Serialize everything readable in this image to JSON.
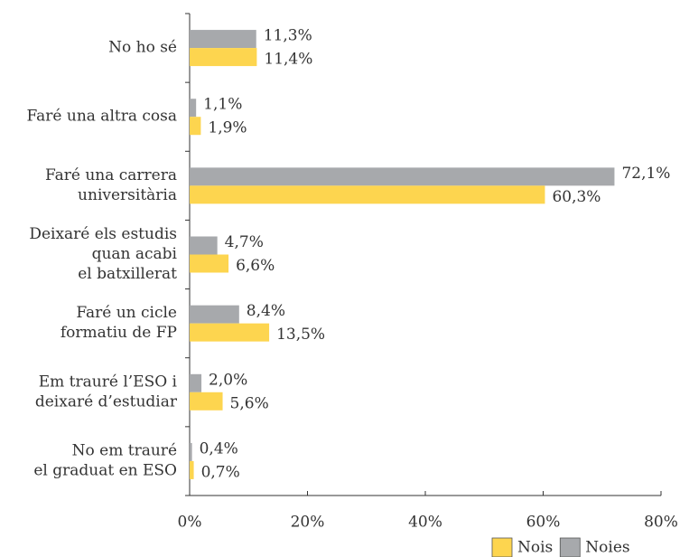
{
  "chart_data": {
    "type": "hbar",
    "categories": [
      [
        "No ho sé"
      ],
      [
        "Faré una altra cosa"
      ],
      [
        "Faré una carrera",
        "universitària"
      ],
      [
        "Deixaré els estudis",
        "quan acabi",
        "el batxillerat"
      ],
      [
        "Faré un cicle",
        "formatiu de FP"
      ],
      [
        "Em trauré l’ESO i",
        "deixaré d’estudiar"
      ],
      [
        "No em trauré",
        "el graduat en ESO"
      ]
    ],
    "series": [
      {
        "name": "Nois",
        "color": "#fdd54f",
        "values": [
          11.4,
          1.9,
          60.3,
          6.6,
          13.5,
          5.6,
          0.7
        ],
        "value_labels": [
          "11,4%",
          "1,9%",
          "60,3%",
          "6,6%",
          "13,5%",
          "5,6%",
          "0,7%"
        ]
      },
      {
        "name": "Noies",
        "color": "#a7a9ac",
        "values": [
          11.3,
          1.1,
          72.1,
          4.7,
          8.4,
          2.0,
          0.4
        ],
        "value_labels": [
          "11,3%",
          "1,1%",
          "72,1%",
          "4,7%",
          "8,4%",
          "2,0%",
          "0,4%"
        ]
      }
    ],
    "xlim": [
      0,
      80
    ],
    "xticks": [
      {
        "value": 0,
        "label": "0%"
      },
      {
        "value": 20,
        "label": "20%"
      },
      {
        "value": 40,
        "label": "40%"
      },
      {
        "value": 60,
        "label": "60%"
      },
      {
        "value": 80,
        "label": "80%"
      }
    ],
    "legend": "bottom-right"
  }
}
